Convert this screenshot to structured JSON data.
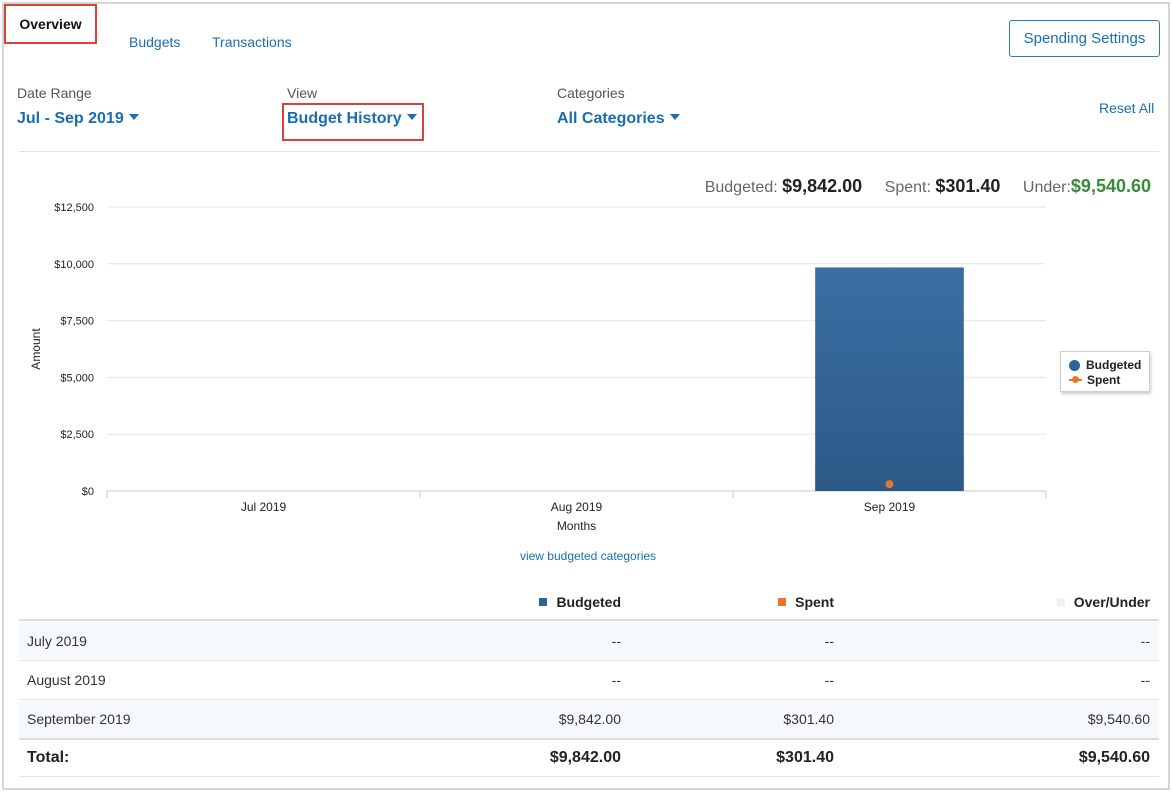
{
  "tabs": {
    "overview": "Overview",
    "budgets": "Budgets",
    "transactions": "Transactions"
  },
  "spending_settings_label": "Spending Settings",
  "filters": {
    "date_range": {
      "label": "Date Range",
      "value": "Jul - Sep 2019"
    },
    "view": {
      "label": "View",
      "value": "Budget History"
    },
    "categories": {
      "label": "Categories",
      "value": "All Categories"
    },
    "reset_label": "Reset All"
  },
  "summary": {
    "budgeted_label": "Budgeted:",
    "budgeted_value": "$9,842.00",
    "spent_label": "Spent:",
    "spent_value": "$301.40",
    "under_label": "Under:",
    "under_value": "$9,540.60"
  },
  "chart_data": {
    "type": "bar",
    "categories": [
      "Jul 2019",
      "Aug 2019",
      "Sep 2019"
    ],
    "series": [
      {
        "name": "Budgeted",
        "type": "bar",
        "values": [
          null,
          null,
          9842.0
        ],
        "color": "#2e6398"
      },
      {
        "name": "Spent",
        "type": "line",
        "values": [
          null,
          null,
          301.4
        ],
        "color": "#e8752a"
      }
    ],
    "xlabel": "Months",
    "ylabel": "Amount",
    "ylim": [
      0,
      12500
    ],
    "yticks": [
      0,
      2500,
      5000,
      7500,
      10000,
      12500
    ],
    "ytick_labels": [
      "$0",
      "$2,500",
      "$5,000",
      "$7,500",
      "$10,000",
      "$12,500"
    ],
    "grid": true,
    "legend_position": "right"
  },
  "view_budgeted_link": "view budgeted categories",
  "table": {
    "columns": [
      {
        "label": "Budgeted",
        "color": "#2e6398"
      },
      {
        "label": "Spent",
        "color": "#e8752a"
      },
      {
        "label": "Over/Under",
        "color": "#f0f0f0"
      }
    ],
    "rows": [
      {
        "label": "July 2019",
        "budgeted": "--",
        "spent": "--",
        "over_under": "--"
      },
      {
        "label": "August 2019",
        "budgeted": "--",
        "spent": "--",
        "over_under": "--"
      },
      {
        "label": "September 2019",
        "budgeted": "$9,842.00",
        "spent": "$301.40",
        "over_under": "$9,540.60"
      }
    ],
    "total": {
      "label": "Total:",
      "budgeted": "$9,842.00",
      "spent": "$301.40",
      "over_under": "$9,540.60"
    }
  }
}
